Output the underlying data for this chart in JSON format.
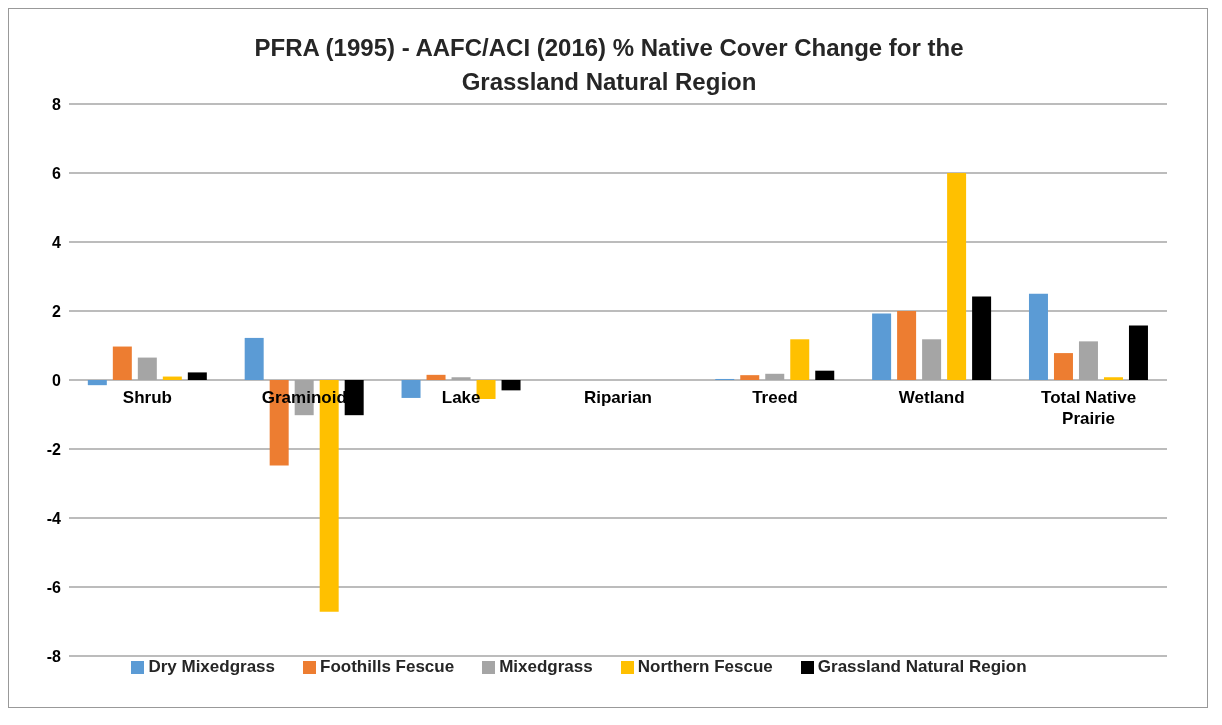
{
  "chart_data": {
    "type": "bar",
    "title": "PFRA (1995) - AAFC/ACI (2016) % Native Cover Change for the Grassland Natural Region",
    "categories": [
      "Shrub",
      "Graminoid",
      "Lake",
      "Riparian",
      "Treed",
      "Wetland",
      "Total Native Prairie"
    ],
    "series": [
      {
        "name": "Dry Mixedgrass",
        "color": "#5b9bd5",
        "values": [
          -0.15,
          1.22,
          -0.52,
          0,
          0.03,
          1.93,
          2.5
        ]
      },
      {
        "name": "Foothills Fescue",
        "color": "#ed7d31",
        "values": [
          0.97,
          -2.48,
          0.15,
          0,
          0.14,
          2.0,
          0.78
        ]
      },
      {
        "name": "Mixedgrass",
        "color": "#a5a5a5",
        "values": [
          0.65,
          -1.02,
          0.08,
          0,
          0.18,
          1.18,
          1.12
        ]
      },
      {
        "name": "Northern Fescue",
        "color": "#ffc000",
        "values": [
          0.1,
          -6.72,
          -0.55,
          0,
          1.18,
          6.0,
          0.08
        ]
      },
      {
        "name": "Grassland Natural Region",
        "color": "#000000",
        "values": [
          0.22,
          -1.02,
          -0.3,
          0,
          0.27,
          2.42,
          1.58
        ]
      }
    ],
    "ylim": [
      -8,
      8
    ],
    "yticks": [
      -8,
      -6,
      -4,
      -2,
      0,
      2,
      4,
      6,
      8
    ],
    "grid": "y",
    "legend": "bottom"
  }
}
